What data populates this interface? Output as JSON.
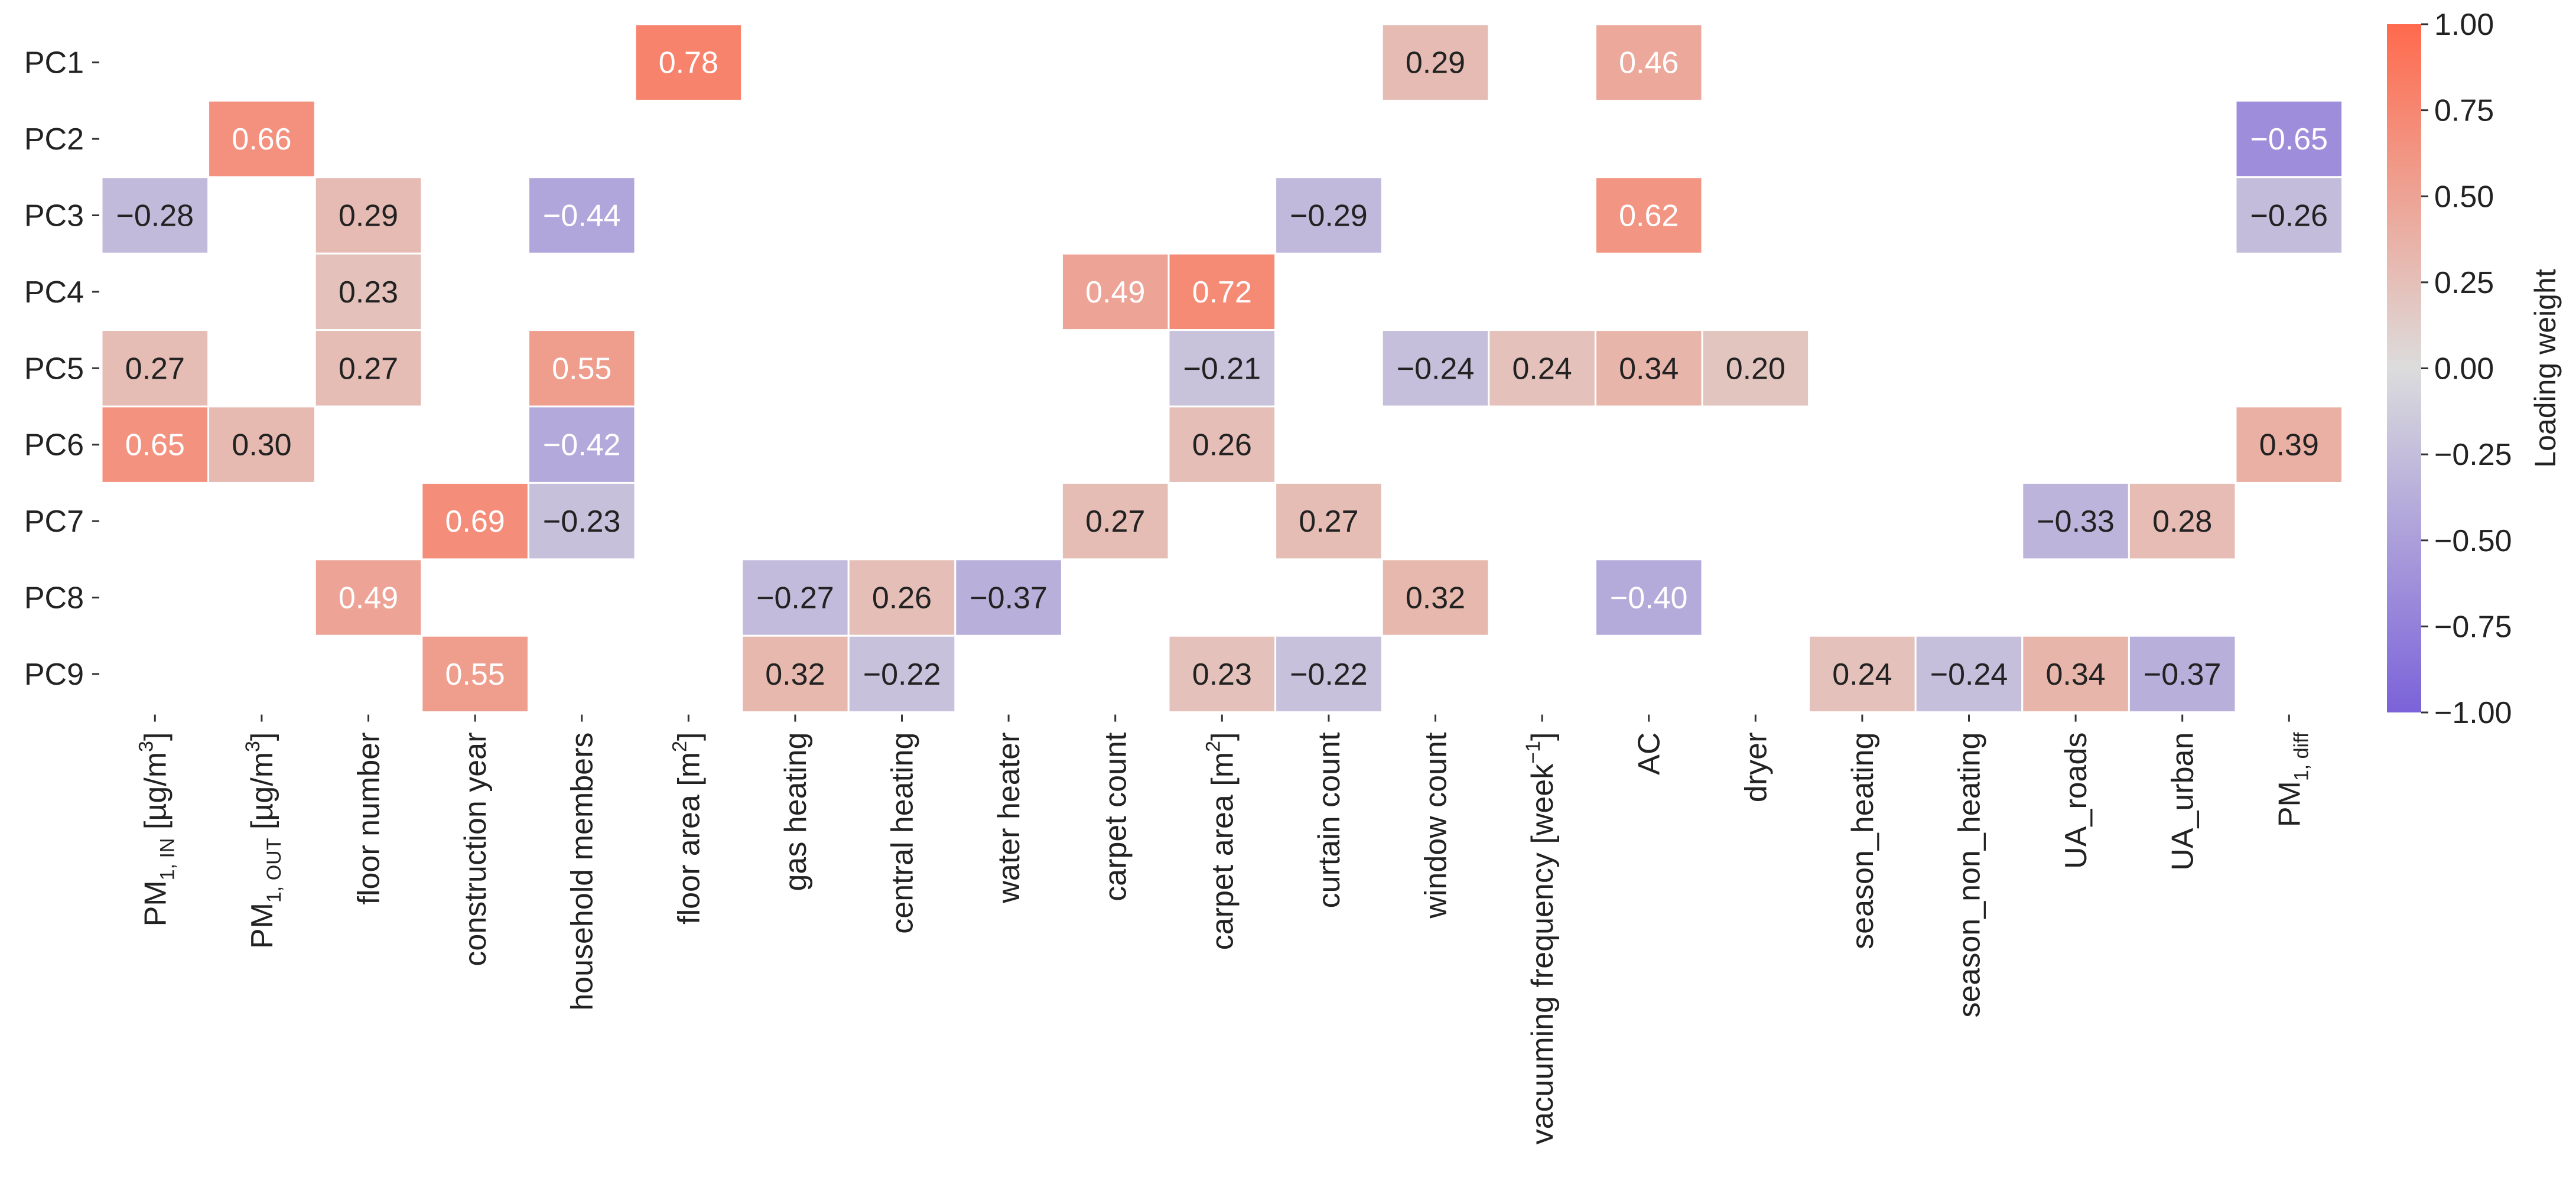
{
  "chart_data": {
    "type": "heatmap",
    "title": "",
    "xlabel": "",
    "ylabel": "",
    "rows": [
      "PC1",
      "PC2",
      "PC3",
      "PC4",
      "PC5",
      "PC6",
      "PC7",
      "PC8",
      "PC9"
    ],
    "columns": [
      {
        "base": "PM",
        "sub": "1, IN",
        "rest": " [µg/m",
        "sup": "3",
        "end": "]"
      },
      {
        "base": "PM",
        "sub": "1, OUT",
        "rest": " [µg/m",
        "sup": "3",
        "end": "]"
      },
      {
        "base": "floor number"
      },
      {
        "base": "construction year"
      },
      {
        "base": "household members"
      },
      {
        "base": "floor area [m",
        "sup": "2",
        "end": "]"
      },
      {
        "base": "gas heating"
      },
      {
        "base": "central heating"
      },
      {
        "base": "water heater"
      },
      {
        "base": "carpet count"
      },
      {
        "base": "carpet area [m",
        "sup": "2",
        "end": "]"
      },
      {
        "base": "curtain count"
      },
      {
        "base": "window count"
      },
      {
        "base": "vacuuming frequency [week",
        "sup": "−1",
        "end": "]"
      },
      {
        "base": "AC"
      },
      {
        "base": "dryer"
      },
      {
        "base": "season_heating"
      },
      {
        "base": "season_non_heating"
      },
      {
        "base": "UA_roads"
      },
      {
        "base": "UA_urban"
      },
      {
        "base": "PM",
        "sub": "1, diff"
      }
    ],
    "values": [
      [
        null,
        null,
        null,
        null,
        null,
        0.78,
        null,
        null,
        null,
        null,
        null,
        null,
        0.29,
        null,
        0.46,
        null,
        null,
        null,
        null,
        null,
        null
      ],
      [
        null,
        0.66,
        null,
        null,
        null,
        null,
        null,
        null,
        null,
        null,
        null,
        null,
        null,
        null,
        null,
        null,
        null,
        null,
        null,
        null,
        -0.65
      ],
      [
        -0.28,
        null,
        0.29,
        null,
        -0.44,
        null,
        null,
        null,
        null,
        null,
        null,
        -0.29,
        null,
        null,
        0.62,
        null,
        null,
        null,
        null,
        null,
        -0.26
      ],
      [
        null,
        null,
        0.23,
        null,
        null,
        null,
        null,
        null,
        null,
        0.49,
        0.72,
        null,
        null,
        null,
        null,
        null,
        null,
        null,
        null,
        null,
        null
      ],
      [
        0.27,
        null,
        0.27,
        null,
        0.55,
        null,
        null,
        null,
        null,
        null,
        -0.21,
        null,
        -0.24,
        0.24,
        0.34,
        0.2,
        null,
        null,
        null,
        null,
        null
      ],
      [
        0.65,
        0.3,
        null,
        null,
        -0.42,
        null,
        null,
        null,
        null,
        null,
        0.26,
        null,
        null,
        null,
        null,
        null,
        null,
        null,
        null,
        null,
        0.39
      ],
      [
        null,
        null,
        null,
        0.69,
        -0.23,
        null,
        null,
        null,
        null,
        0.27,
        null,
        0.27,
        null,
        null,
        null,
        null,
        null,
        null,
        -0.33,
        0.28,
        null
      ],
      [
        null,
        null,
        0.49,
        null,
        null,
        null,
        -0.27,
        0.26,
        -0.37,
        null,
        null,
        null,
        0.32,
        null,
        -0.4,
        null,
        null,
        null,
        null,
        null,
        null
      ],
      [
        null,
        null,
        null,
        0.55,
        null,
        null,
        0.32,
        -0.22,
        null,
        null,
        0.23,
        -0.22,
        null,
        null,
        null,
        null,
        0.24,
        -0.24,
        0.34,
        -0.37,
        null
      ]
    ],
    "vmin": -1.0,
    "vmax": 1.0,
    "colormap": {
      "low": "#7B62D9",
      "mid": "#DCDCDC",
      "high": "#FF6A4D"
    },
    "colorbar": {
      "label": "Loading weight",
      "ticks": [
        1.0,
        0.75,
        0.5,
        0.25,
        0.0,
        -0.25,
        -0.5,
        -0.75,
        -1.0
      ],
      "tick_labels": [
        "1.00",
        "0.75",
        "0.50",
        "0.25",
        "0.00",
        "−0.25",
        "−0.50",
        "−0.75",
        "−1.00"
      ]
    }
  }
}
